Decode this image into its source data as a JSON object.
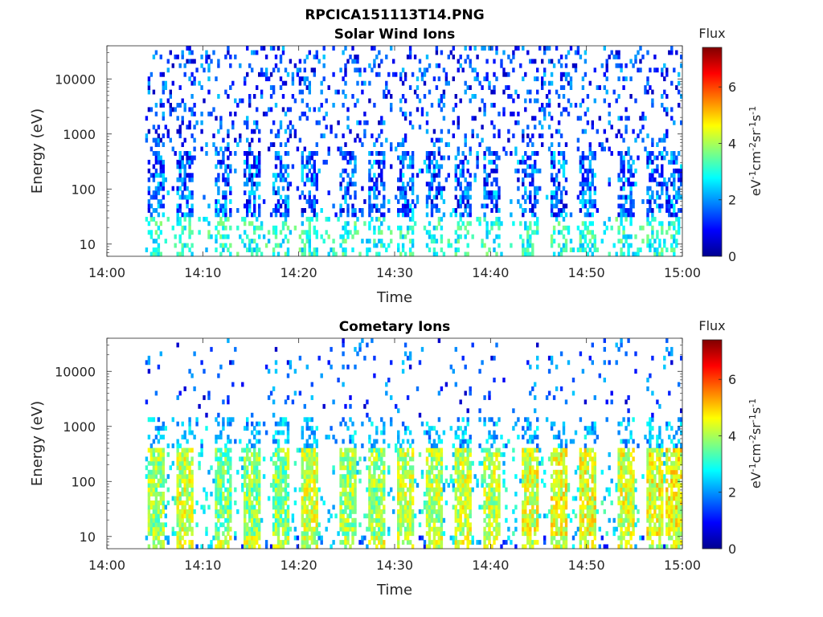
{
  "figure_title": "RPCICA151113T14.PNG",
  "chart_data": [
    {
      "type": "heatmap",
      "title": "Solar Wind Ions",
      "xlabel": "Time",
      "ylabel": "Energy (eV)",
      "xticks": [
        "14:00",
        "14:10",
        "14:20",
        "14:30",
        "14:40",
        "14:50",
        "15:00"
      ],
      "xlim": [
        "14:00",
        "15:00"
      ],
      "yscale": "log",
      "yticks": [
        10,
        100,
        1000,
        10000
      ],
      "ytick_labels": [
        "10",
        "100",
        "1000",
        "10000"
      ],
      "ylim": [
        6,
        40000
      ],
      "colorbar": {
        "title": "Flux",
        "label": "eV-1cm-2sr-1s-1",
        "range": [
          0,
          7.4
        ],
        "ticks": [
          0,
          2,
          4,
          6
        ],
        "tick_labels": [
          "0",
          "2",
          "4",
          "6"
        ],
        "colormap": "jet"
      },
      "data_start": "14:04",
      "bursts": [
        {
          "time": "14:05",
          "intensity": 1.6
        },
        {
          "time": "14:08",
          "intensity": 1.5
        },
        {
          "time": "14:12",
          "intensity": 1.5
        },
        {
          "time": "14:15",
          "intensity": 1.6
        },
        {
          "time": "14:18",
          "intensity": 1.6
        },
        {
          "time": "14:21",
          "intensity": 1.5
        },
        {
          "time": "14:25",
          "intensity": 1.6
        },
        {
          "time": "14:28",
          "intensity": 1.7
        },
        {
          "time": "14:31",
          "intensity": 1.6
        },
        {
          "time": "14:34",
          "intensity": 1.8
        },
        {
          "time": "14:37",
          "intensity": 1.8
        },
        {
          "time": "14:40",
          "intensity": 1.9
        },
        {
          "time": "14:44",
          "intensity": 1.8
        },
        {
          "time": "14:47",
          "intensity": 1.9
        },
        {
          "time": "14:50",
          "intensity": 1.8
        },
        {
          "time": "14:54",
          "intensity": 2.0
        },
        {
          "time": "14:57",
          "intensity": 1.9
        },
        {
          "time": "14:59",
          "intensity": 1.8
        }
      ]
    },
    {
      "type": "heatmap",
      "title": "Cometary Ions",
      "xlabel": "Time",
      "ylabel": "Energy (eV)",
      "xticks": [
        "14:00",
        "14:10",
        "14:20",
        "14:30",
        "14:40",
        "14:50",
        "15:00"
      ],
      "xlim": [
        "14:00",
        "15:00"
      ],
      "yscale": "log",
      "yticks": [
        10,
        100,
        1000,
        10000
      ],
      "ytick_labels": [
        "10",
        "100",
        "1000",
        "10000"
      ],
      "ylim": [
        6,
        40000
      ],
      "colorbar": {
        "title": "Flux",
        "label": "eV-1cm-2sr-1s-1",
        "range": [
          0,
          7.4
        ],
        "ticks": [
          0,
          2,
          4,
          6
        ],
        "tick_labels": [
          "0",
          "2",
          "4",
          "6"
        ],
        "colormap": "jet"
      },
      "data_start": "14:04",
      "bursts": [
        {
          "time": "14:05",
          "intensity": 4.3
        },
        {
          "time": "14:08",
          "intensity": 4.6
        },
        {
          "time": "14:12",
          "intensity": 4.0
        },
        {
          "time": "14:15",
          "intensity": 4.2
        },
        {
          "time": "14:18",
          "intensity": 4.1
        },
        {
          "time": "14:21",
          "intensity": 4.6
        },
        {
          "time": "14:25",
          "intensity": 4.3
        },
        {
          "time": "14:28",
          "intensity": 4.2
        },
        {
          "time": "14:31",
          "intensity": 4.5
        },
        {
          "time": "14:34",
          "intensity": 4.4
        },
        {
          "time": "14:37",
          "intensity": 4.6
        },
        {
          "time": "14:40",
          "intensity": 4.5
        },
        {
          "time": "14:44",
          "intensity": 4.7
        },
        {
          "time": "14:47",
          "intensity": 4.9
        },
        {
          "time": "14:50",
          "intensity": 4.8
        },
        {
          "time": "14:54",
          "intensity": 4.7
        },
        {
          "time": "14:57",
          "intensity": 4.8
        },
        {
          "time": "14:59",
          "intensity": 4.9
        }
      ]
    }
  ]
}
